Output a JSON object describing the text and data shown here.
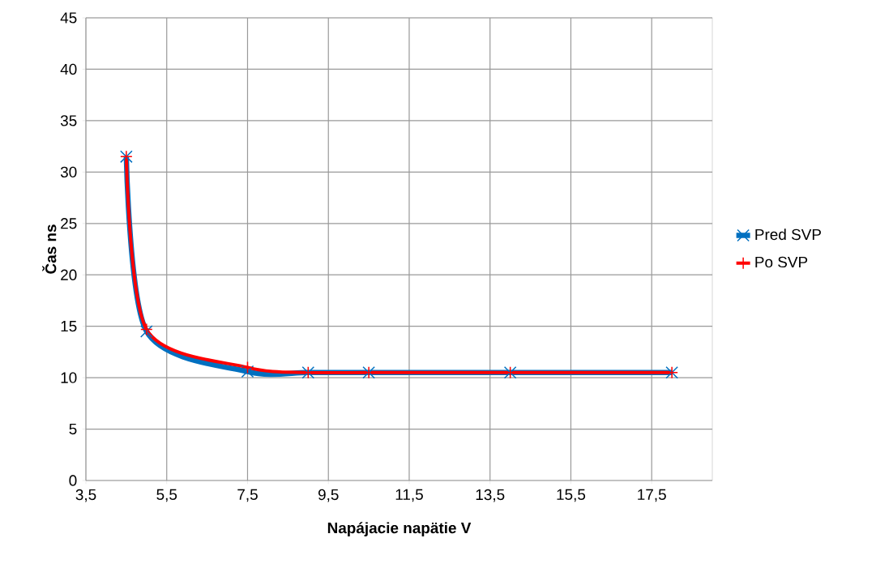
{
  "chart_data": {
    "type": "line",
    "xlabel": "Napájacie napätie V",
    "ylabel": "Čas ns",
    "series": [
      {
        "name": "Pred SVP",
        "color": "#0070c0",
        "marker": "cross",
        "x": [
          4.5,
          5.0,
          7.5,
          9.0,
          10.5,
          14.0,
          18.0
        ],
        "values": [
          31.5,
          14.5,
          10.6,
          10.5,
          10.5,
          10.5,
          10.5
        ]
      },
      {
        "name": "Po SVP",
        "color": "#ff0000",
        "marker": "plus",
        "x": [
          4.5,
          5.0,
          7.5,
          9.0,
          10.5,
          14.0,
          18.0
        ],
        "values": [
          31.5,
          14.7,
          11.0,
          10.5,
          10.5,
          10.5,
          10.5
        ]
      }
    ],
    "xlim": [
      3.5,
      19
    ],
    "xticks": [
      {
        "value": 3.5,
        "label": "3,5"
      },
      {
        "value": 5.5,
        "label": "5,5"
      },
      {
        "value": 7.5,
        "label": "7,5"
      },
      {
        "value": 9.5,
        "label": "9,5"
      },
      {
        "value": 11.5,
        "label": "11,5"
      },
      {
        "value": 13.5,
        "label": "13,5"
      },
      {
        "value": 15.5,
        "label": "15,5"
      },
      {
        "value": 17.5,
        "label": "17,5"
      }
    ],
    "ylim": [
      0,
      45
    ],
    "yticks": [
      0,
      5,
      10,
      15,
      20,
      25,
      30,
      35,
      40,
      45
    ],
    "grid": true,
    "legend": "right",
    "line_style": "solid"
  }
}
